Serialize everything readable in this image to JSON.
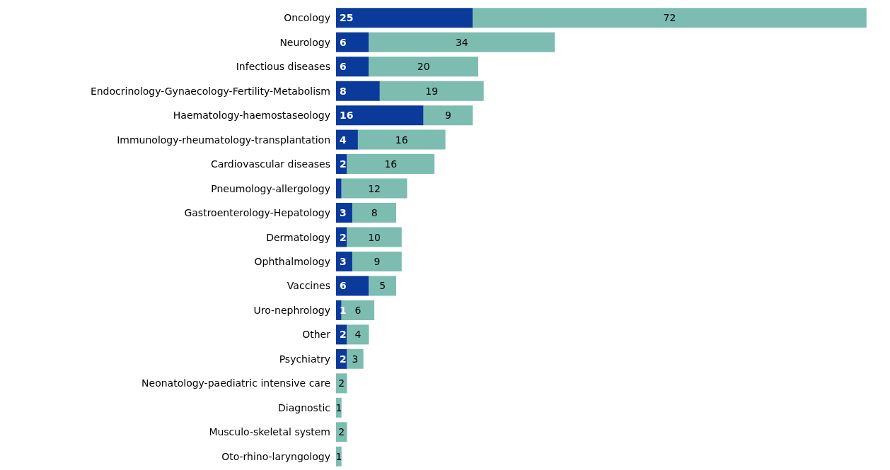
{
  "chart_data": {
    "type": "bar",
    "orientation": "horizontal",
    "stacked": true,
    "categories": [
      "Oncology",
      "Neurology",
      "Infectious diseases",
      "Endocrinology-Gynaecology-Fertility-Metabolism",
      "Haematology-haemostaseology",
      "Immunology-rheumatology-transplantation",
      "Cardiovascular diseases",
      "Pneumology-allergology",
      "Gastroenterology-Hepatology",
      "Dermatology",
      "Ophthalmology",
      "Vaccines",
      "Uro-nephrology",
      "Other",
      "Psychiatry",
      "Neonatology-paediatric intensive care",
      "Diagnostic",
      "Musculo-skeletal system",
      "Oto-rhino-laryngology"
    ],
    "series": [
      {
        "color": "#0a3a9a",
        "values": [
          25,
          6,
          6,
          8,
          16,
          4,
          2,
          1,
          3,
          2,
          3,
          6,
          1,
          2,
          2,
          null,
          null,
          null,
          null
        ],
        "value_labels": [
          "25",
          "6",
          "6",
          "8",
          "16",
          "4",
          "2",
          null,
          "3",
          "2",
          "3",
          "6",
          "1",
          "2",
          "2",
          null,
          null,
          null,
          null
        ]
      },
      {
        "color": "#7dbcb1",
        "values": [
          72,
          34,
          20,
          19,
          9,
          16,
          16,
          12,
          8,
          10,
          9,
          5,
          6,
          4,
          3,
          2,
          1,
          2,
          1
        ],
        "value_labels": [
          "72",
          "34",
          "20",
          "19",
          "9",
          "16",
          "16",
          "12",
          "8",
          "10",
          "9",
          "5",
          "6",
          "4",
          "3",
          "2",
          "1",
          "2",
          "1"
        ]
      }
    ]
  }
}
